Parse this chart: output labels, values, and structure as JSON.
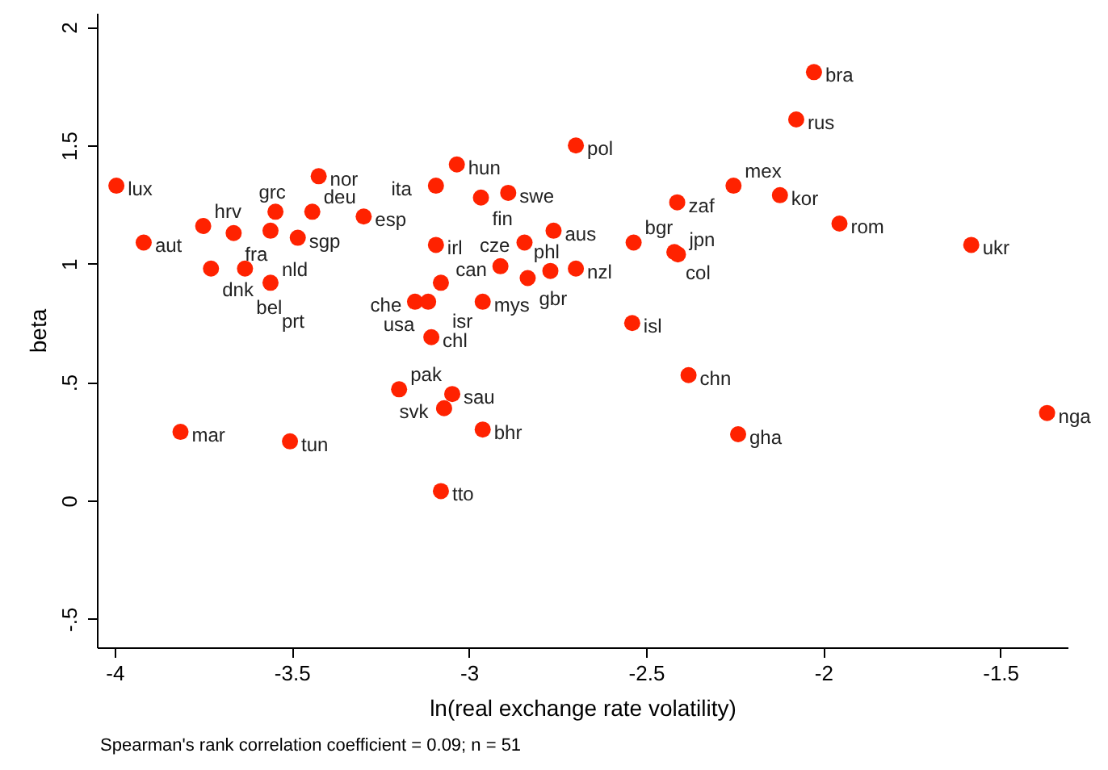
{
  "chart_data": {
    "type": "scatter",
    "xlabel": "ln(real exchange rate volatility)",
    "ylabel": "beta",
    "x": [
      -3.995,
      -3.918,
      -3.75,
      -3.664,
      -3.546,
      -3.442,
      -3.56,
      -3.483,
      -3.297,
      -3.424,
      -3.728,
      -3.632,
      -3.56,
      -3.034,
      -2.698,
      -3.093,
      -2.966,
      -2.889,
      -3.093,
      -2.843,
      -2.761,
      -2.911,
      -2.834,
      -2.77,
      -2.698,
      -2.535,
      -2.42,
      -2.41,
      -3.079,
      -3.106,
      -3.152,
      -3.115,
      -2.961,
      -2.412,
      -2.026,
      -2.076,
      -2.253,
      -2.122,
      -1.954,
      -1.582,
      -3.814,
      -3.505,
      -3.197,
      -3.047,
      -3.07,
      -2.961,
      -3.079,
      -2.539,
      -2.38,
      -2.24,
      -1.368
    ],
    "series": [
      {
        "color": "#ff2200",
        "values": [
          1.33,
          1.09,
          1.16,
          1.13,
          1.22,
          1.22,
          1.14,
          1.11,
          1.2,
          1.37,
          0.98,
          0.98,
          0.92,
          1.42,
          1.5,
          1.33,
          1.28,
          1.3,
          1.08,
          1.09,
          1.14,
          0.99,
          0.94,
          0.97,
          0.98,
          1.09,
          1.05,
          1.04,
          0.92,
          0.69,
          0.84,
          0.84,
          0.84,
          1.26,
          1.81,
          1.61,
          1.33,
          1.29,
          1.17,
          1.08,
          0.29,
          0.25,
          0.47,
          0.45,
          0.39,
          0.3,
          0.04,
          0.75,
          0.53,
          0.28,
          0.37
        ]
      }
    ],
    "xlim": [
      -4.05,
      -1.31
    ],
    "xticks": [
      -4,
      -3.5,
      -3,
      -2.5,
      -2,
      -1.5
    ],
    "ylim": [
      -0.62,
      2.06
    ],
    "yticks": [
      {
        "value": -0.5,
        "label": "-.5"
      },
      0,
      {
        "value": 0.5,
        "label": ".5"
      },
      1,
      1.5,
      2
    ],
    "marker": "circle",
    "grid": false,
    "annotations": [
      {
        "text": "lux",
        "x": -3.995,
        "y": 1.33
      },
      {
        "text": "aut",
        "x": -3.918,
        "y": 1.09
      },
      {
        "text": "hrv",
        "x": -3.75,
        "y": 1.16
      },
      {
        "text": "fra",
        "x": -3.664,
        "y": 1.13
      },
      {
        "text": "grc",
        "x": -3.546,
        "y": 1.22
      },
      {
        "text": "deu",
        "x": -3.442,
        "y": 1.22
      },
      {
        "text": "nld",
        "x": -3.56,
        "y": 1.14
      },
      {
        "text": "sgp",
        "x": -3.483,
        "y": 1.11
      },
      {
        "text": "esp",
        "x": -3.297,
        "y": 1.2
      },
      {
        "text": "nor",
        "x": -3.424,
        "y": 1.37
      },
      {
        "text": "dnk",
        "x": -3.728,
        "y": 0.98
      },
      {
        "text": "bel",
        "x": -3.632,
        "y": 0.98
      },
      {
        "text": "prt",
        "x": -3.56,
        "y": 0.92
      },
      {
        "text": "hun",
        "x": -3.034,
        "y": 1.42
      },
      {
        "text": "pol",
        "x": -2.698,
        "y": 1.5
      },
      {
        "text": "ita",
        "x": -3.093,
        "y": 1.33
      },
      {
        "text": "fin",
        "x": -2.966,
        "y": 1.28
      },
      {
        "text": "swe",
        "x": -2.889,
        "y": 1.3
      },
      {
        "text": "irl",
        "x": -3.093,
        "y": 1.08
      },
      {
        "text": "cze",
        "x": -2.843,
        "y": 1.09
      },
      {
        "text": "aus",
        "x": -2.761,
        "y": 1.14
      },
      {
        "text": "can",
        "x": -2.911,
        "y": 0.99
      },
      {
        "text": "gbr",
        "x": -2.834,
        "y": 0.94
      },
      {
        "text": "phl",
        "x": -2.77,
        "y": 0.97
      },
      {
        "text": "nzl",
        "x": -2.698,
        "y": 0.98
      },
      {
        "text": "bgr",
        "x": -2.535,
        "y": 1.09
      },
      {
        "text": "col",
        "x": -2.42,
        "y": 1.05
      },
      {
        "text": "jpn",
        "x": -2.41,
        "y": 1.04
      },
      {
        "text": "isr",
        "x": -3.079,
        "y": 0.92
      },
      {
        "text": "chl",
        "x": -3.106,
        "y": 0.69
      },
      {
        "text": "che",
        "x": -3.152,
        "y": 0.84
      },
      {
        "text": "usa",
        "x": -3.115,
        "y": 0.84
      },
      {
        "text": "mys",
        "x": -2.961,
        "y": 0.84
      },
      {
        "text": "zaf",
        "x": -2.412,
        "y": 1.26
      },
      {
        "text": "bra",
        "x": -2.026,
        "y": 1.81
      },
      {
        "text": "rus",
        "x": -2.076,
        "y": 1.61
      },
      {
        "text": "mex",
        "x": -2.253,
        "y": 1.33
      },
      {
        "text": "kor",
        "x": -2.122,
        "y": 1.29
      },
      {
        "text": "rom",
        "x": -1.954,
        "y": 1.17
      },
      {
        "text": "ukr",
        "x": -1.582,
        "y": 1.08
      },
      {
        "text": "mar",
        "x": -3.814,
        "y": 0.29
      },
      {
        "text": "tun",
        "x": -3.505,
        "y": 0.25
      },
      {
        "text": "pak",
        "x": -3.197,
        "y": 0.47
      },
      {
        "text": "sau",
        "x": -3.047,
        "y": 0.45
      },
      {
        "text": "svk",
        "x": -3.07,
        "y": 0.39
      },
      {
        "text": "bhr",
        "x": -2.961,
        "y": 0.3
      },
      {
        "text": "tto",
        "x": -3.079,
        "y": 0.04
      },
      {
        "text": "isl",
        "x": -2.539,
        "y": 0.75
      },
      {
        "text": "chn",
        "x": -2.38,
        "y": 0.53
      },
      {
        "text": "gha",
        "x": -2.24,
        "y": 0.28
      },
      {
        "text": "nga",
        "x": -1.368,
        "y": 0.37
      },
      "Spearman's rank correlation coefficient = 0.09; n = 51"
    ]
  }
}
